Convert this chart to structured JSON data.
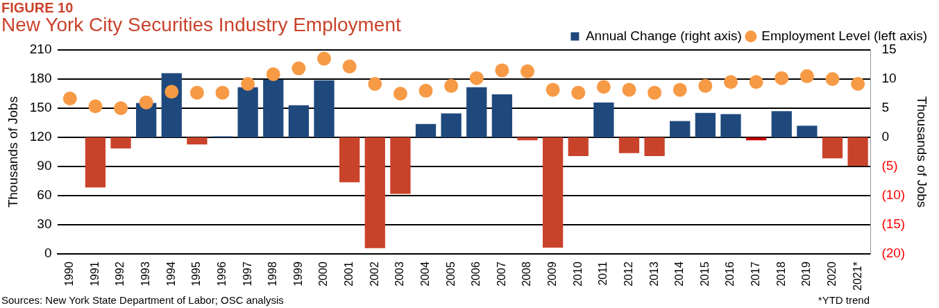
{
  "chart_data": {
    "type": "bar",
    "title": "FIGURE 10",
    "subtitle": "New York City Securities Industry Employment",
    "ylabel": "Thousands of Jobs",
    "y2label": "Thousands of Jobs",
    "categories": [
      "1990",
      "1991",
      "1992",
      "1993",
      "1994",
      "1995",
      "1996",
      "1997",
      "1998",
      "1999",
      "2000",
      "2001",
      "2002",
      "2003",
      "2004",
      "2005",
      "2006",
      "2007",
      "2008",
      "2009",
      "2010",
      "2011",
      "2012",
      "2013",
      "2014",
      "2015",
      "2016",
      "2017",
      "2018",
      "2019",
      "2020",
      "2021*"
    ],
    "series": [
      {
        "name": "Annual Change (right axis)",
        "axis": "y2",
        "color": "#1f497d",
        "colors": [
          "#1f497d",
          "#c9432b",
          "#c9432b",
          "#1f497d",
          "#1f497d",
          "#c9432b",
          "#1f497d",
          "#1f497d",
          "#1f497d",
          "#1f497d",
          "#1f497d",
          "#c9432b",
          "#c9432b",
          "#c9432b",
          "#1f497d",
          "#1f497d",
          "#1f497d",
          "#1f497d",
          "#c9432b",
          "#c9432b",
          "#c9432b",
          "#1f497d",
          "#c9432b",
          "#c9432b",
          "#1f497d",
          "#1f497d",
          "#1f497d",
          "#c00000",
          "#1f497d",
          "#1f497d",
          "#c9432b",
          "#c9432b"
        ],
        "values": [
          null,
          -8.6,
          -1.9,
          5.9,
          11.0,
          -1.2,
          0.2,
          8.6,
          9.9,
          5.5,
          9.8,
          -7.7,
          -19.0,
          -9.7,
          2.3,
          4.1,
          8.6,
          7.4,
          -0.5,
          -18.9,
          -3.2,
          6.0,
          -2.7,
          -3.2,
          2.8,
          4.2,
          4.0,
          -0.5,
          4.5,
          2.0,
          -3.6,
          -4.9
        ]
      },
      {
        "name": "Employment Level (left axis)",
        "type": "scatter",
        "color": "#f79a46",
        "values": [
          160,
          152,
          150,
          156,
          167,
          166,
          166,
          175,
          185,
          191,
          201,
          193,
          175,
          165,
          168,
          173,
          181,
          189,
          188,
          169,
          166,
          172,
          169,
          166,
          169,
          173,
          177,
          177,
          181,
          183,
          180,
          175
        ]
      }
    ],
    "ylim": [
      0,
      210
    ],
    "yticks": [
      0,
      30,
      60,
      90,
      120,
      150,
      180,
      210
    ],
    "y2lim": [
      -20,
      15
    ],
    "y2ticks": [
      {
        "value": -20,
        "label": "(20)"
      },
      {
        "value": -15,
        "label": "(15)"
      },
      {
        "value": -10,
        "label": "(10)"
      },
      {
        "value": -5,
        "label": "(5)"
      },
      0,
      5,
      10,
      15
    ],
    "grid": "y",
    "legend": "top right",
    "marker": "circle",
    "annotations": [
      "*YTD trend",
      "Sources: New York State Department of Labor; OSC analysis"
    ]
  }
}
